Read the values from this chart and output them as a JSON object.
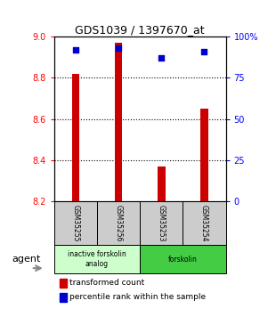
{
  "title": "GDS1039 / 1397670_at",
  "samples": [
    "GSM35255",
    "GSM35256",
    "GSM35253",
    "GSM35254"
  ],
  "bar_values": [
    8.82,
    8.97,
    8.37,
    8.65
  ],
  "percentile_values": [
    92,
    93,
    87,
    91
  ],
  "ylim_left": [
    8.2,
    9.0
  ],
  "ylim_right": [
    0,
    100
  ],
  "yticks_left": [
    8.2,
    8.4,
    8.6,
    8.8,
    9.0
  ],
  "ytick_labels_right": [
    "0",
    "25",
    "50",
    "75",
    "100%"
  ],
  "bar_color": "#cc0000",
  "dot_color": "#0000cc",
  "bar_width": 0.18,
  "group_box_color_light": "#ccffcc",
  "group_box_color_dark": "#44cc44",
  "sample_box_color": "#cccccc",
  "agent_label": "agent",
  "legend_bar_label": "transformed count",
  "legend_dot_label": "percentile rank within the sample",
  "grid_dotted_at": [
    8.4,
    8.6,
    8.8
  ],
  "background_color": "#ffffff"
}
